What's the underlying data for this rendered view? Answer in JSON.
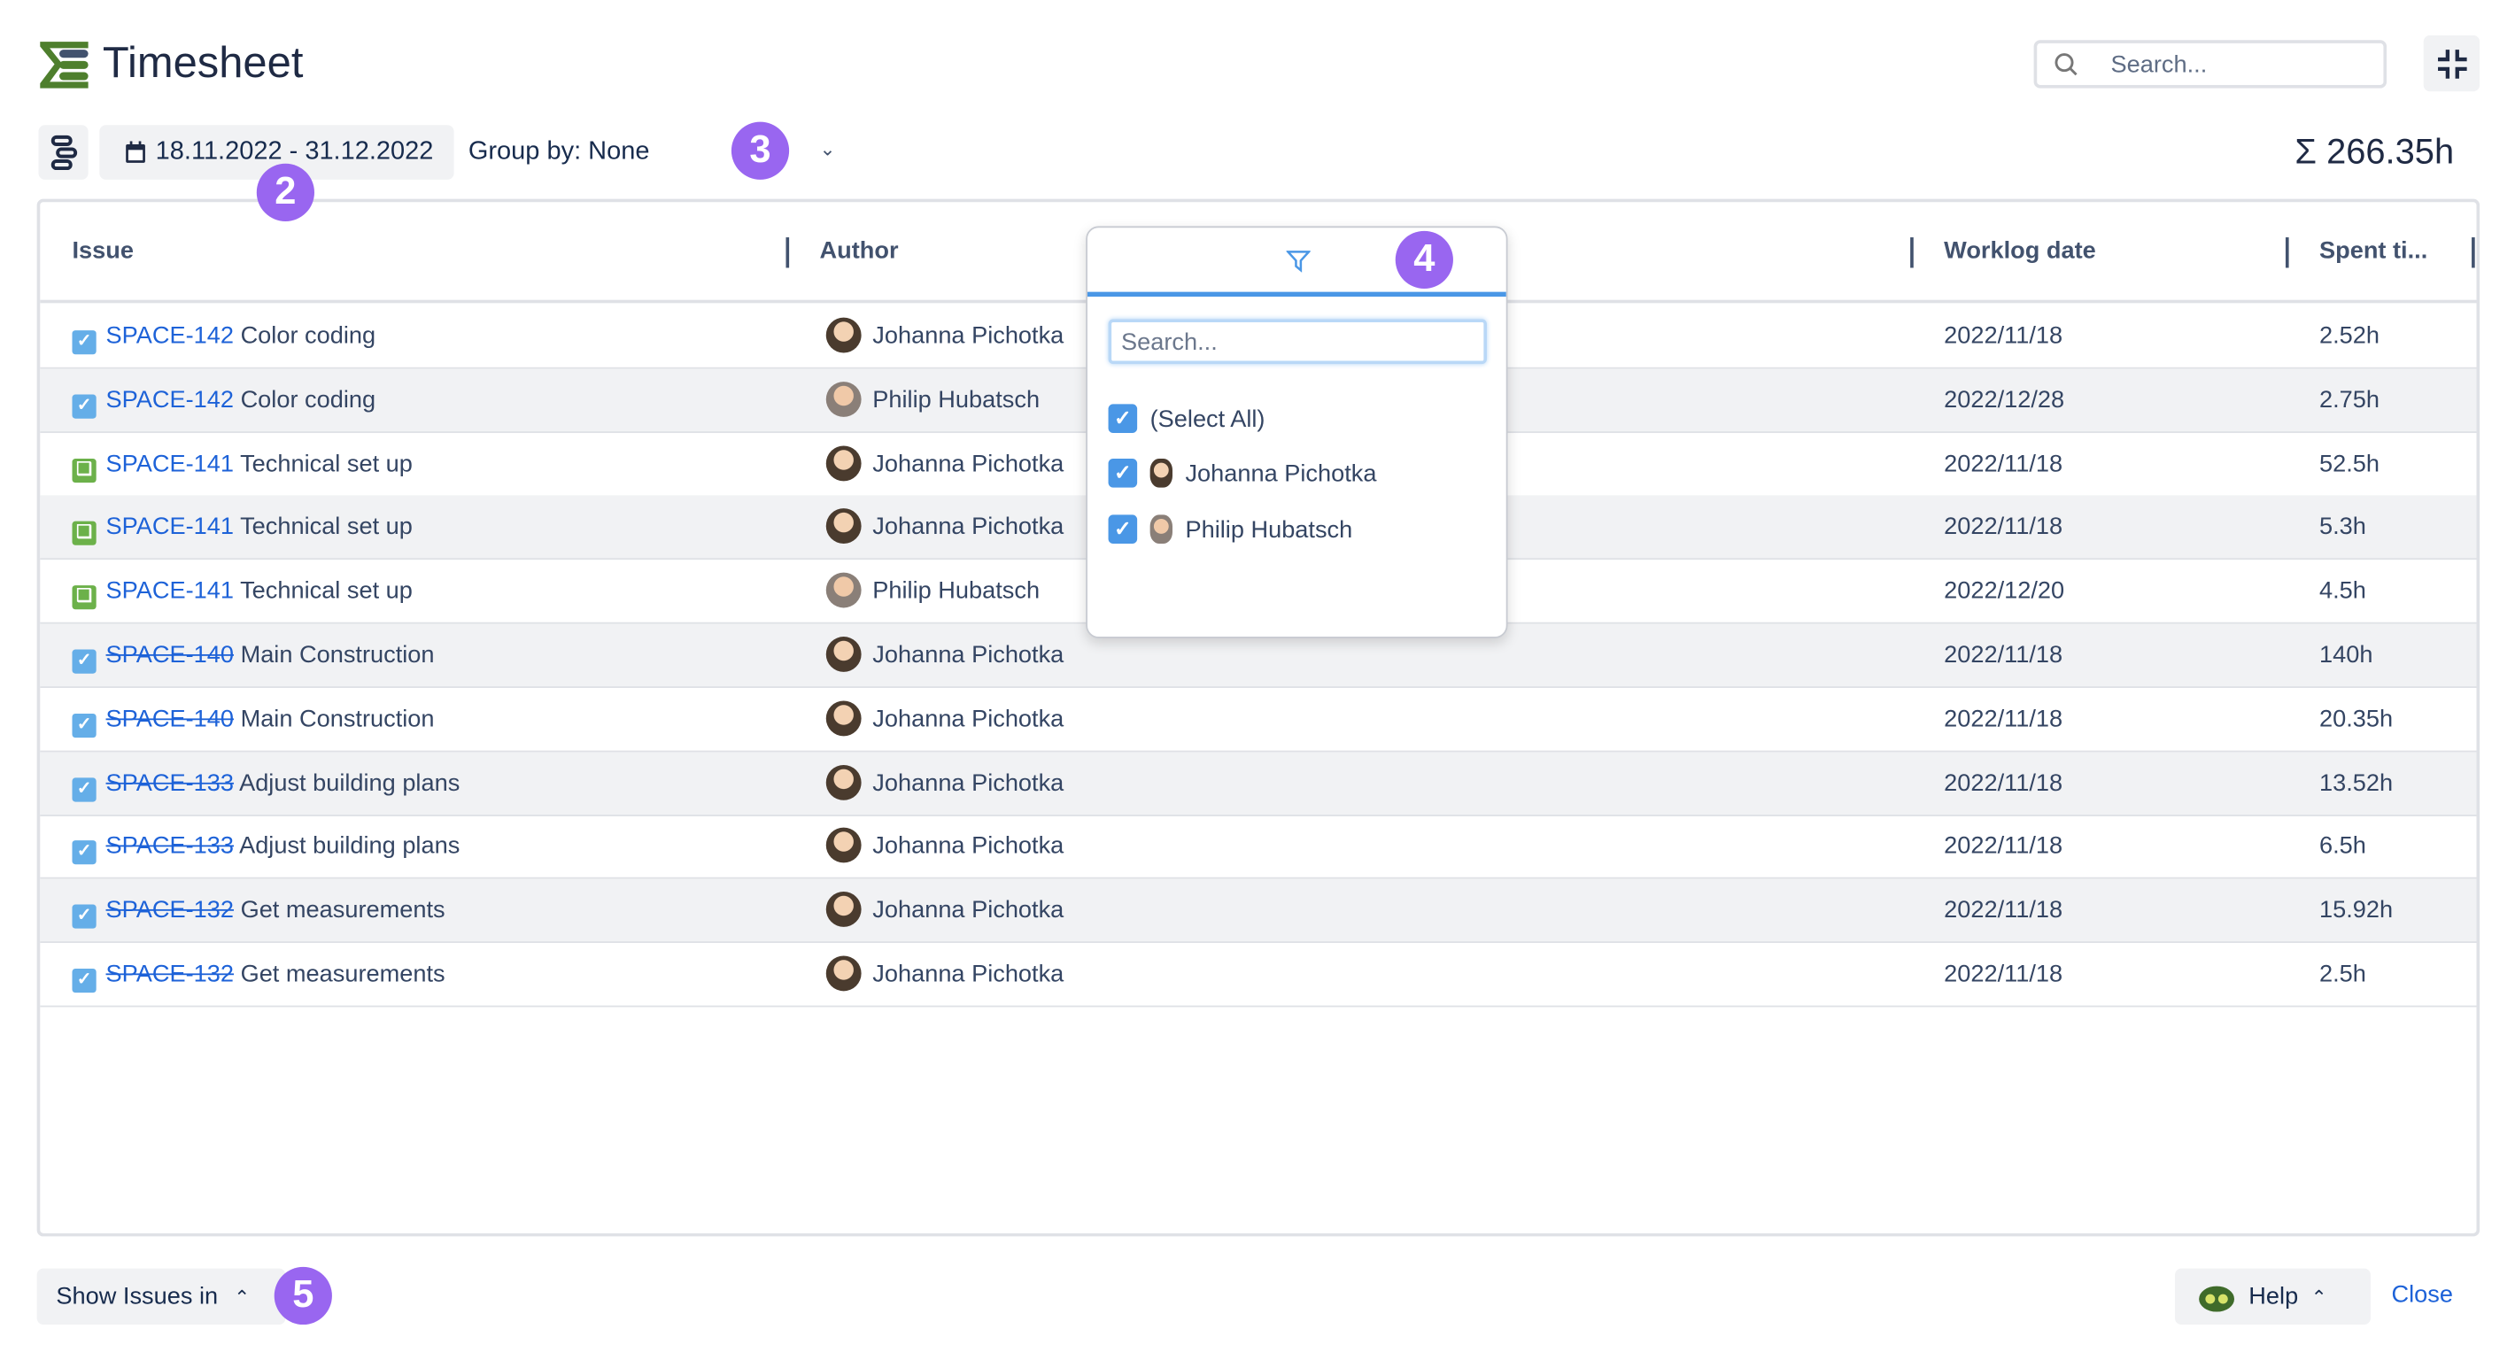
{
  "header": {
    "title": "Timesheet",
    "search_placeholder": "Search...",
    "collapse_icon": "collapse-icon"
  },
  "toolbar": {
    "date_range": "18.11.2022 - 31.12.2022",
    "group_by": "Group by: None",
    "total": "Σ 266.35h"
  },
  "badges": {
    "b2": "2",
    "b3": "3",
    "b4": "4",
    "b5": "5"
  },
  "table": {
    "columns": [
      "Issue",
      "Author",
      "Worklog date",
      "Spent ti..."
    ],
    "rows": [
      {
        "type": "task",
        "key": "SPACE-142",
        "summary": "Color coding",
        "done": false,
        "author": "Johanna Pichotka",
        "date": "2022/11/18",
        "spent": "2.52h"
      },
      {
        "type": "task",
        "key": "SPACE-142",
        "summary": "Color coding",
        "done": false,
        "author": "Philip Hubatsch",
        "date": "2022/12/28",
        "spent": "2.75h"
      },
      {
        "type": "story",
        "key": "SPACE-141",
        "summary": "Technical set up",
        "done": false,
        "author": "Johanna Pichotka",
        "date": "2022/11/18",
        "spent": "52.5h"
      },
      {
        "type": "story",
        "key": "SPACE-141",
        "summary": "Technical set up",
        "done": false,
        "author": "Johanna Pichotka",
        "date": "2022/11/18",
        "spent": "5.3h"
      },
      {
        "type": "story",
        "key": "SPACE-141",
        "summary": "Technical set up",
        "done": false,
        "author": "Philip Hubatsch",
        "date": "2022/12/20",
        "spent": "4.5h"
      },
      {
        "type": "task",
        "key": "SPACE-140",
        "summary": "Main Construction",
        "done": true,
        "author": "Johanna Pichotka",
        "date": "2022/11/18",
        "spent": "140h"
      },
      {
        "type": "task",
        "key": "SPACE-140",
        "summary": "Main Construction",
        "done": true,
        "author": "Johanna Pichotka",
        "date": "2022/11/18",
        "spent": "20.35h"
      },
      {
        "type": "task",
        "key": "SPACE-133",
        "summary": "Adjust building plans",
        "done": true,
        "author": "Johanna Pichotka",
        "date": "2022/11/18",
        "spent": "13.52h"
      },
      {
        "type": "task",
        "key": "SPACE-133",
        "summary": "Adjust building plans",
        "done": true,
        "author": "Johanna Pichotka",
        "date": "2022/11/18",
        "spent": "6.5h"
      },
      {
        "type": "task",
        "key": "SPACE-132",
        "summary": "Get measurements",
        "done": true,
        "author": "Johanna Pichotka",
        "date": "2022/11/18",
        "spent": "15.92h"
      },
      {
        "type": "task",
        "key": "SPACE-132",
        "summary": "Get measurements",
        "done": true,
        "author": "Johanna Pichotka",
        "date": "2022/11/18",
        "spent": "2.5h"
      }
    ]
  },
  "filter_popup": {
    "search_placeholder": "Search...",
    "items": [
      {
        "label": "(Select All)",
        "checked": true
      },
      {
        "label": "Johanna Pichotka",
        "checked": true
      },
      {
        "label": "Philip Hubatsch",
        "checked": true
      }
    ]
  },
  "footer": {
    "show_issues": "Show Issues in",
    "help": "Help",
    "close": "Close"
  },
  "colors": {
    "accent": "#1d62d8",
    "badge": "#9966f0",
    "task": "#65aee8",
    "story": "#6cb14a",
    "logo": "#4e7f2d"
  }
}
